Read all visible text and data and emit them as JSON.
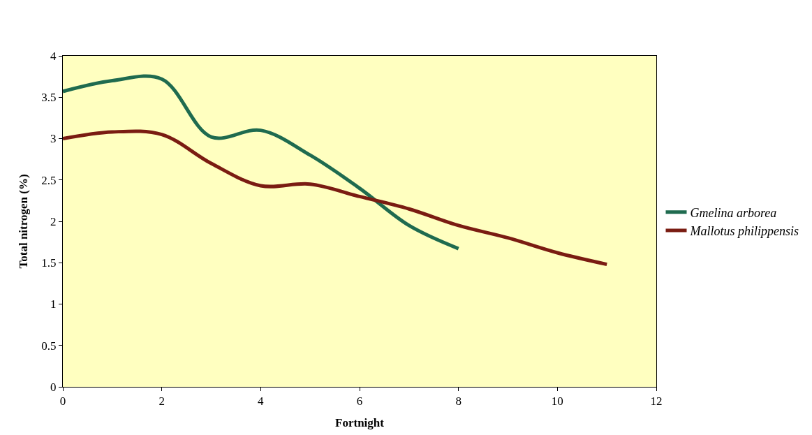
{
  "chart_data": {
    "type": "line",
    "xlabel": "Fortnight",
    "ylabel": "Total nitrogen (%)",
    "xlim": [
      0,
      12
    ],
    "xticks": [
      0,
      2,
      4,
      6,
      8,
      10,
      12
    ],
    "ylim": [
      0,
      4
    ],
    "yticks": [
      0,
      0.5,
      1,
      1.5,
      2,
      2.5,
      3,
      3.5,
      4
    ],
    "grid": false,
    "legend": "right",
    "marker": "none",
    "line_style": "solid",
    "series": [
      {
        "name": "Gmelina arborea",
        "color": "#1f6b4f",
        "x": [
          0,
          1,
          2,
          3,
          4,
          5,
          6,
          7,
          8
        ],
        "values": [
          3.57,
          3.7,
          3.72,
          3.02,
          3.1,
          2.8,
          2.4,
          1.95,
          1.67
        ]
      },
      {
        "name": "Mallotus philippensis",
        "color": "#7a1c12",
        "x": [
          0,
          1,
          2,
          3,
          4,
          5,
          6,
          7,
          8,
          9,
          10,
          11
        ],
        "values": [
          3.0,
          3.08,
          3.05,
          2.7,
          2.43,
          2.45,
          2.3,
          2.15,
          1.95,
          1.8,
          1.62,
          1.48
        ]
      }
    ]
  }
}
